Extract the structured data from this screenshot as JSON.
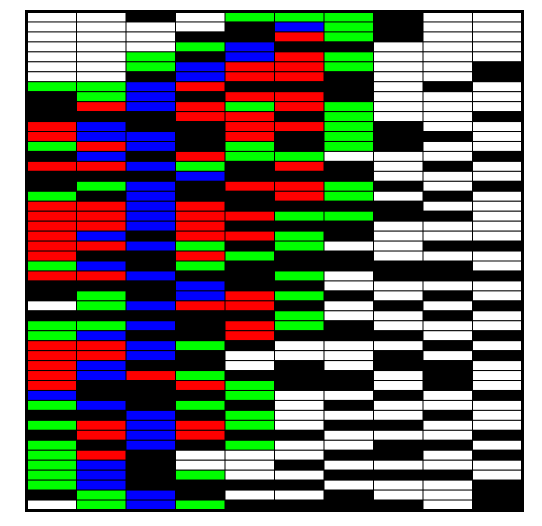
{
  "grid": {
    "columns": [
      [
        "white",
        "white",
        "white",
        "white",
        "white",
        "white",
        "white",
        "lime",
        "black",
        "black",
        "black",
        "red",
        "red",
        "lime",
        "black",
        "red",
        "black",
        "black",
        "lime",
        "red",
        "red",
        "red",
        "red",
        "red",
        "red",
        "lime",
        "red",
        "black",
        "black",
        "white",
        "black",
        "lime",
        "lime",
        "red",
        "red",
        "red",
        "red",
        "red",
        "blue",
        "lime",
        "black",
        "lime",
        "black",
        "lime",
        "lime",
        "lime",
        "lime",
        "lime",
        "black",
        "white"
      ],
      [
        "white",
        "white",
        "white",
        "white",
        "white",
        "white",
        "white",
        "lime",
        "lime",
        "red",
        "black",
        "blue",
        "blue",
        "red",
        "blue",
        "red",
        "black",
        "lime",
        "black",
        "red",
        "red",
        "red",
        "blue",
        "red",
        "black",
        "blue",
        "red",
        "black",
        "lime",
        "lime",
        "black",
        "lime",
        "blue",
        "red",
        "red",
        "blue",
        "blue",
        "black",
        "black",
        "blue",
        "black",
        "red",
        "red",
        "black",
        "red",
        "blue",
        "blue",
        "blue",
        "lime",
        "lime"
      ],
      [
        "black",
        "white",
        "white",
        "white",
        "lime",
        "lime",
        "black",
        "blue",
        "blue",
        "blue",
        "black",
        "black",
        "blue",
        "blue",
        "black",
        "blue",
        "black",
        "blue",
        "blue",
        "blue",
        "blue",
        "blue",
        "black",
        "blue",
        "black",
        "black",
        "blue",
        "black",
        "black",
        "blue",
        "black",
        "blue",
        "black",
        "blue",
        "blue",
        "black",
        "red",
        "black",
        "black",
        "black",
        "blue",
        "blue",
        "blue",
        "blue",
        "black",
        "black",
        "black",
        "black",
        "blue",
        "blue"
      ],
      [
        "white",
        "white",
        "black",
        "lime",
        "black",
        "blue",
        "blue",
        "red",
        "black",
        "red",
        "red",
        "black",
        "black",
        "black",
        "red",
        "lime",
        "blue",
        "black",
        "black",
        "red",
        "red",
        "red",
        "red",
        "lime",
        "red",
        "lime",
        "black",
        "blue",
        "blue",
        "red",
        "black",
        "black",
        "black",
        "lime",
        "black",
        "black",
        "lime",
        "red",
        "black",
        "lime",
        "black",
        "red",
        "red",
        "black",
        "white",
        "white",
        "lime",
        "black",
        "black",
        "lime"
      ],
      [
        "lime",
        "black",
        "black",
        "blue",
        "blue",
        "red",
        "red",
        "black",
        "red",
        "lime",
        "red",
        "red",
        "red",
        "lime",
        "lime",
        "black",
        "black",
        "red",
        "black",
        "black",
        "red",
        "black",
        "red",
        "black",
        "lime",
        "black",
        "black",
        "black",
        "red",
        "red",
        "black",
        "red",
        "red",
        "black",
        "white",
        "white",
        "black",
        "lime",
        "lime",
        "black",
        "lime",
        "lime",
        "black",
        "lime",
        "white",
        "white",
        "white",
        "black",
        "white",
        "black"
      ],
      [
        "lime",
        "blue",
        "red",
        "black",
        "red",
        "red",
        "red",
        "black",
        "red",
        "red",
        "black",
        "red",
        "black",
        "black",
        "lime",
        "red",
        "black",
        "red",
        "red",
        "black",
        "lime",
        "black",
        "lime",
        "lime",
        "black",
        "black",
        "lime",
        "black",
        "lime",
        "black",
        "lime",
        "lime",
        "black",
        "white",
        "white",
        "black",
        "black",
        "black",
        "white",
        "white",
        "white",
        "white",
        "black",
        "white",
        "white",
        "black",
        "white",
        "black",
        "white",
        "black"
      ],
      [
        "lime",
        "lime",
        "lime",
        "black",
        "lime",
        "lime",
        "black",
        "black",
        "black",
        "lime",
        "lime",
        "lime",
        "lime",
        "lime",
        "white",
        "black",
        "black",
        "lime",
        "lime",
        "black",
        "lime",
        "black",
        "black",
        "white",
        "black",
        "black",
        "white",
        "white",
        "black",
        "white",
        "white",
        "black",
        "black",
        "white",
        "white",
        "white",
        "black",
        "black",
        "white",
        "black",
        "white",
        "black",
        "white",
        "white",
        "black",
        "white",
        "black",
        "white",
        "black",
        "black"
      ],
      [
        "black",
        "black",
        "black",
        "white",
        "white",
        "white",
        "white",
        "white",
        "white",
        "white",
        "white",
        "black",
        "black",
        "black",
        "white",
        "white",
        "white",
        "black",
        "white",
        "black",
        "black",
        "white",
        "white",
        "white",
        "white",
        "black",
        "black",
        "white",
        "white",
        "black",
        "white",
        "white",
        "black",
        "white",
        "black",
        "black",
        "white",
        "white",
        "black",
        "white",
        "white",
        "black",
        "white",
        "black",
        "black",
        "white",
        "black",
        "white",
        "white",
        "black"
      ],
      [
        "white",
        "white",
        "white",
        "white",
        "white",
        "white",
        "white",
        "black",
        "white",
        "white",
        "white",
        "white",
        "black",
        "white",
        "white",
        "black",
        "white",
        "white",
        "black",
        "white",
        "black",
        "white",
        "white",
        "black",
        "white",
        "black",
        "black",
        "white",
        "black",
        "white",
        "black",
        "white",
        "white",
        "black",
        "white",
        "black",
        "black",
        "black",
        "white",
        "white",
        "black",
        "white",
        "white",
        "black",
        "white",
        "white",
        "black",
        "white",
        "white",
        "white"
      ],
      [
        "white",
        "white",
        "white",
        "white",
        "white",
        "black",
        "black",
        "white",
        "white",
        "white",
        "black",
        "white",
        "white",
        "white",
        "black",
        "white",
        "white",
        "black",
        "white",
        "white",
        "white",
        "white",
        "white",
        "black",
        "white",
        "white",
        "black",
        "white",
        "white",
        "black",
        "white",
        "white",
        "black",
        "white",
        "black",
        "white",
        "white",
        "white",
        "black",
        "white",
        "white",
        "white",
        "black",
        "white",
        "black",
        "white",
        "white",
        "black",
        "black",
        "black"
      ]
    ]
  }
}
